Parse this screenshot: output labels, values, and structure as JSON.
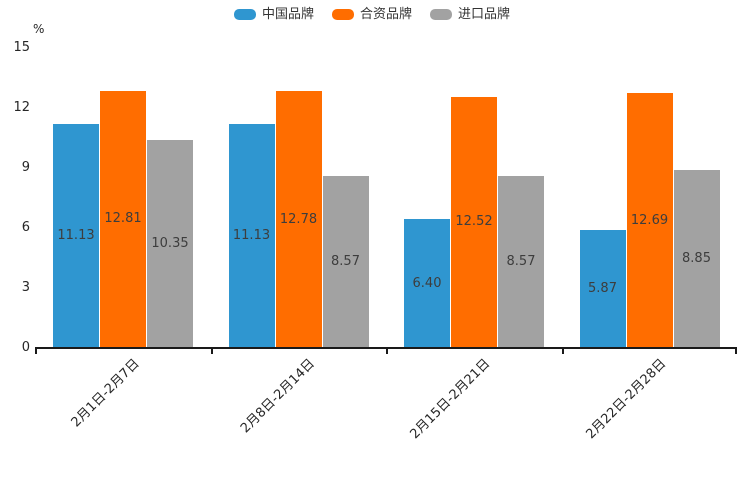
{
  "chart_data": {
    "type": "bar",
    "title": "",
    "xlabel": "",
    "ylabel": "%",
    "ylim": [
      0,
      15
    ],
    "yticks": [
      0,
      3,
      6,
      9,
      12,
      15
    ],
    "grid": false,
    "legend_position": "top",
    "value_labels": true,
    "value_label_decimals": 2,
    "categories": [
      "2月1日-2月7日",
      "2月8日-2月14日",
      "2月15日-2月21日",
      "2月22日-2月28日"
    ],
    "series": [
      {
        "name": "中国品牌",
        "key": "china-brand",
        "color": "#2F96D0",
        "values": [
          11.13,
          11.13,
          6.4,
          5.87
        ]
      },
      {
        "name": "合资品牌",
        "key": "joint-venture-brand",
        "color": "#FF6D00",
        "values": [
          12.81,
          12.78,
          12.52,
          12.69
        ]
      },
      {
        "name": "进口品牌",
        "key": "imported-brand",
        "color": "#A2A2A2",
        "values": [
          10.35,
          8.57,
          8.57,
          8.85
        ]
      }
    ]
  },
  "colors": {
    "axis": "#1a1a1a",
    "tick_label": "#262626",
    "value_label": "#3d3d3d",
    "legend_text": "#333333",
    "background": "#ffffff"
  }
}
